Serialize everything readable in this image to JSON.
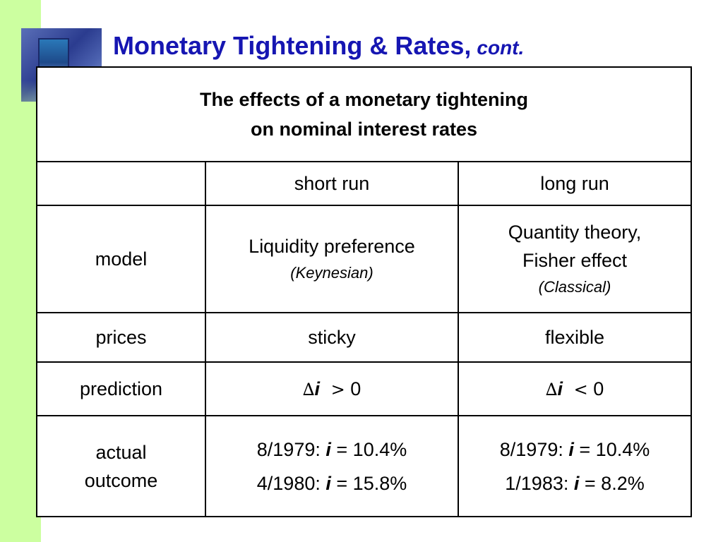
{
  "slide": {
    "title": "Monetary Tightening & Rates,",
    "title_suffix": "cont."
  },
  "table": {
    "caption_line1": "The effects of a monetary tightening",
    "caption_line2": "on nominal interest rates",
    "headers": [
      "",
      "short run",
      "long run"
    ],
    "rows": {
      "model": {
        "label": "model",
        "short_main": "Liquidity preference",
        "short_sub": "(Keynesian)",
        "long_main_1": "Quantity theory,",
        "long_main_2": "Fisher effect",
        "long_sub": "(Classical)"
      },
      "prices": {
        "label": "prices",
        "short": "sticky",
        "long": "flexible"
      },
      "prediction": {
        "label": "prediction",
        "delta": "∆",
        "var": "i",
        "short_op": ">",
        "long_op": "<",
        "zero": "0"
      },
      "outcome": {
        "label_1": "actual",
        "label_2": "outcome",
        "short_1_date": "8/1979:",
        "short_1_value": "= 10.4%",
        "short_2_date": "4/1980:",
        "short_2_value": "= 15.8%",
        "long_1_date": "8/1979:",
        "long_1_value": "= 10.4%",
        "long_2_date": "1/1983:",
        "long_2_value": "= 8.2%",
        "var": "i"
      }
    }
  },
  "colors": {
    "title": "#1616b2",
    "side_strip": "#ccffa0",
    "border": "#000000"
  }
}
